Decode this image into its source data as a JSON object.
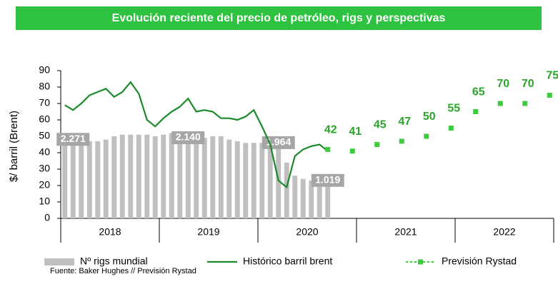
{
  "chart_data": {
    "type": "bar_line",
    "title": "Evolución reciente del precio de petróleo, rigs y perspectivas",
    "y_label": "$/ barril (Brent)",
    "ylim": [
      0,
      90
    ],
    "yticks": [
      0,
      10,
      20,
      30,
      40,
      50,
      60,
      70,
      80,
      90
    ],
    "categories": [
      null,
      null,
      null,
      null,
      null,
      null,
      null,
      null,
      null,
      null,
      null,
      null,
      null,
      null,
      null,
      null,
      null,
      null,
      null,
      null,
      null,
      null,
      null,
      null,
      null,
      null,
      null,
      null,
      null,
      null,
      null,
      null,
      null,
      null,
      null,
      null,
      null,
      null,
      null,
      null,
      null,
      null,
      null,
      null,
      null,
      null,
      null,
      null,
      null,
      null,
      null,
      null,
      null,
      null,
      null,
      null,
      null,
      null,
      null,
      null
    ],
    "year_labels": [
      "2018",
      "2019",
      "2020",
      "2021",
      "2022"
    ],
    "series": [
      {
        "name": "Nº rigs mundial",
        "kind": "bar",
        "color": "#bfbfbf",
        "values": [
          49,
          51,
          49,
          47,
          47,
          48,
          50,
          51,
          51,
          51,
          51,
          50,
          51,
          52,
          50,
          48,
          49,
          49,
          50,
          50,
          48,
          47,
          46,
          46,
          46,
          47,
          44,
          34,
          26,
          24,
          23,
          24,
          22,
          null,
          null,
          null,
          null,
          null,
          null,
          null,
          null,
          null,
          null,
          null,
          null,
          null,
          null,
          null,
          null,
          null,
          null,
          null,
          null,
          null,
          null,
          null,
          null,
          null,
          null,
          null
        ],
        "annotations": [
          {
            "index": 0,
            "text": "2.271"
          },
          {
            "index": 14,
            "text": "2.140"
          },
          {
            "index": 25,
            "text": "1.964"
          },
          {
            "index": 31,
            "text": "1.019"
          }
        ]
      },
      {
        "name": "Histórico barril brent",
        "kind": "line",
        "color": "#1a8a2a",
        "values": [
          69,
          66,
          70,
          75,
          77,
          79,
          74,
          77,
          83,
          76,
          60,
          56,
          61,
          65,
          68,
          73,
          65,
          66,
          65,
          61,
          61,
          60,
          62,
          66,
          56,
          45,
          23,
          19,
          38,
          42,
          44,
          45,
          41,
          null,
          null,
          null,
          null,
          null,
          null,
          null,
          null,
          null,
          null,
          null,
          null,
          null,
          null,
          null,
          null,
          null,
          null,
          null,
          null,
          null,
          null,
          null,
          null,
          null,
          null,
          null
        ]
      },
      {
        "name": "Previsión Rystad",
        "kind": "points",
        "color": "#3ccc3c",
        "values": [
          null,
          null,
          null,
          null,
          null,
          null,
          null,
          null,
          null,
          null,
          null,
          null,
          null,
          null,
          null,
          null,
          null,
          null,
          null,
          null,
          null,
          null,
          null,
          null,
          null,
          null,
          null,
          null,
          null,
          null,
          null,
          null,
          42,
          null,
          null,
          41,
          null,
          null,
          45,
          null,
          null,
          47,
          null,
          null,
          50,
          null,
          null,
          55,
          null,
          null,
          65,
          null,
          null,
          70,
          null,
          null,
          70,
          null,
          null,
          75
        ]
      }
    ],
    "source": "Fuente: Baker Hughes // Previsión Rystad"
  }
}
